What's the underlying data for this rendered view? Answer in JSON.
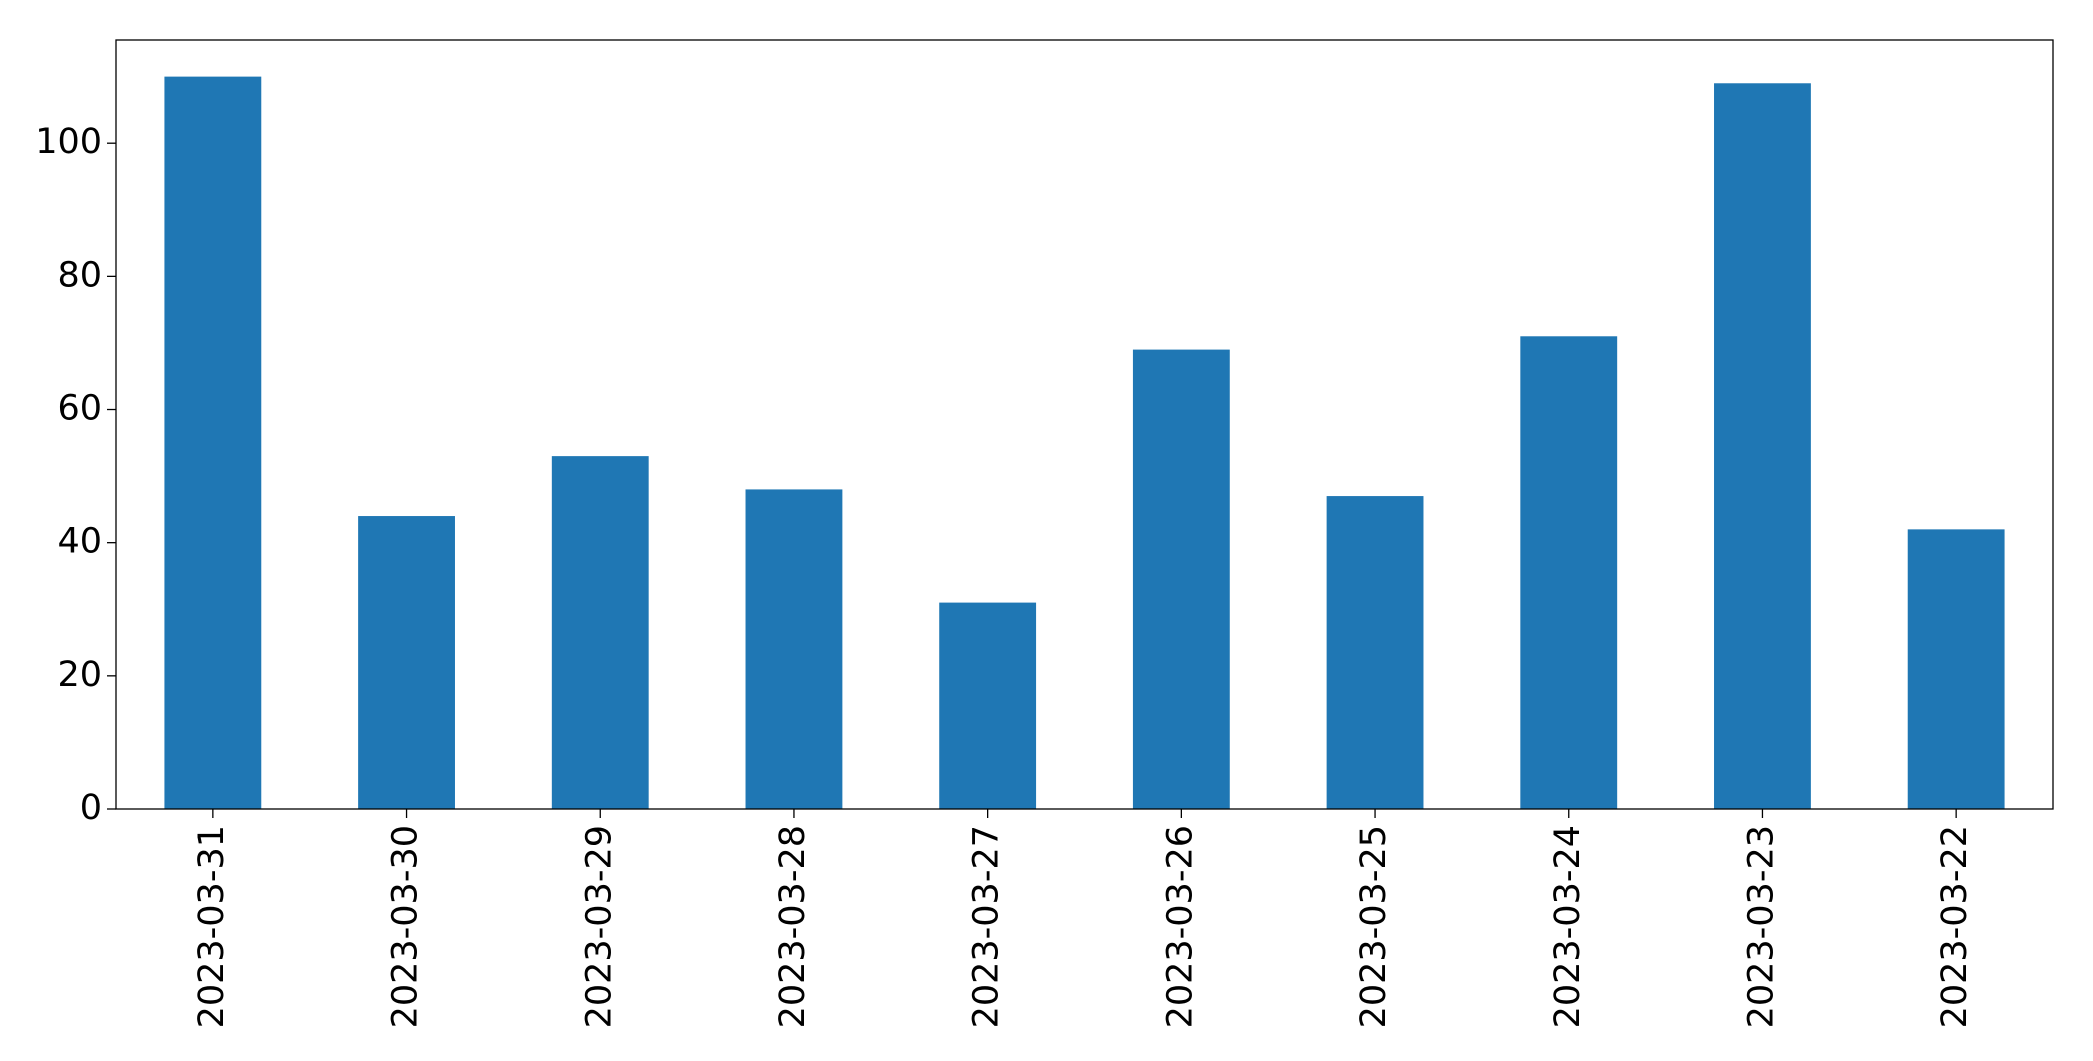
{
  "chart_data": {
    "type": "bar",
    "categories": [
      "2023-03-31",
      "2023-03-30",
      "2023-03-29",
      "2023-03-28",
      "2023-03-27",
      "2023-03-26",
      "2023-03-25",
      "2023-03-24",
      "2023-03-23",
      "2023-03-22"
    ],
    "values": [
      110,
      44,
      53,
      48,
      31,
      69,
      47,
      71,
      109,
      42
    ],
    "color": "#1f77b4",
    "ylim": [
      0,
      115.5
    ],
    "yticks": [
      0,
      20,
      40,
      60,
      80,
      100
    ],
    "grid": false
  }
}
